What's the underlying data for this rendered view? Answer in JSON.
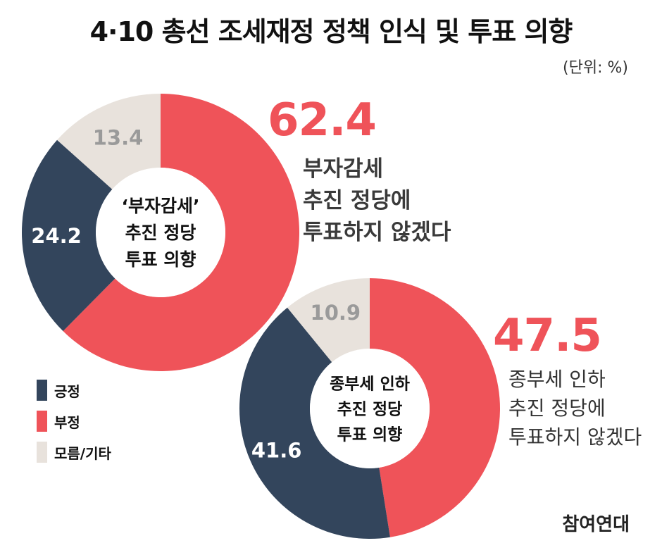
{
  "title": "4·10 총선 조세재정 정책 인식 및 투표 의향",
  "unit": "(단위: %)",
  "colors": {
    "positive": "#33455c",
    "negative": "#ef5359",
    "unknown": "#e8e2dc",
    "white": "#ffffff"
  },
  "legend": [
    {
      "label": "긍정",
      "color": "#33455c"
    },
    {
      "label": "부정",
      "color": "#ef5359"
    },
    {
      "label": "모름/기타",
      "color": "#e8e2dc"
    }
  ],
  "chart_data": [
    {
      "type": "pie",
      "center_label": [
        "‘부자감세’",
        "추진 정당",
        "투표 의향"
      ],
      "categories": [
        "부정",
        "긍정",
        "모름/기타"
      ],
      "values": [
        62.4,
        24.2,
        13.4
      ],
      "value_labels": [
        "62.4",
        "24.2",
        "13.4"
      ],
      "callout": {
        "value": "62.4",
        "lines": [
          "부자감세",
          "추진 정당에",
          "투표하지 않겠다"
        ]
      }
    },
    {
      "type": "pie",
      "center_label": [
        "종부세 인하",
        "추진 정당",
        "투표 의향"
      ],
      "categories": [
        "부정",
        "긍정",
        "모름/기타"
      ],
      "values": [
        47.5,
        41.6,
        10.9
      ],
      "value_labels": [
        "47.5",
        "41.6",
        "10.9"
      ],
      "callout": {
        "value": "47.5",
        "lines": [
          "종부세 인하",
          "추진 정당에",
          "투표하지 않겠다"
        ]
      }
    }
  ],
  "source": "참여연대"
}
